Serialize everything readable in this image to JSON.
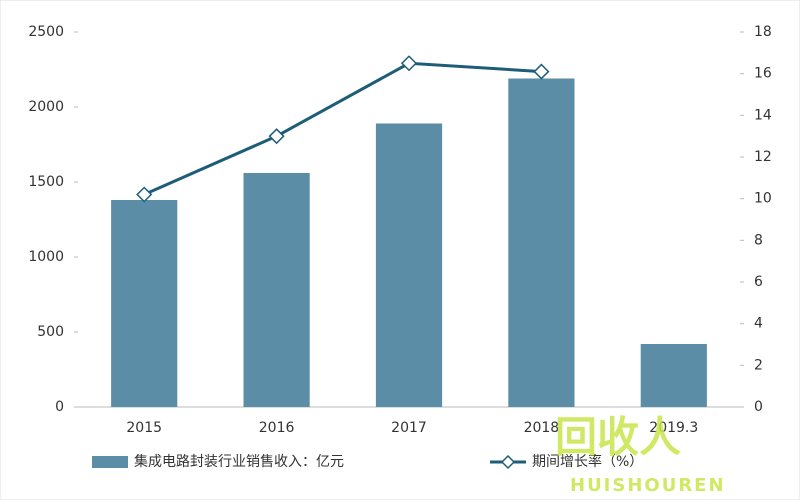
{
  "chart_data": {
    "type": "bar",
    "categories": [
      "2015",
      "2016",
      "2017",
      "2018",
      "2019.3"
    ],
    "series": [
      {
        "name": "集成电路封装行业销售收入：亿元",
        "type": "bar",
        "color": "#5b8ea6",
        "values": [
          1380,
          1560,
          1890,
          2190,
          420
        ]
      },
      {
        "name": "期间增长率（%）",
        "type": "line",
        "axis": "y2",
        "color": "#1d5d78",
        "values": [
          10.2,
          13.0,
          16.5,
          16.1,
          null
        ]
      }
    ],
    "ylim": [
      0,
      2500
    ],
    "yticks": [
      0,
      500,
      1000,
      1500,
      2000,
      2500
    ],
    "y2lim": [
      0,
      18
    ],
    "y2ticks": [
      0,
      2,
      4,
      6,
      8,
      10,
      12,
      14,
      16,
      18
    ],
    "legend": "bottom"
  },
  "watermark": {
    "text": "回收人",
    "subtext": "HUISHOUREN"
  }
}
